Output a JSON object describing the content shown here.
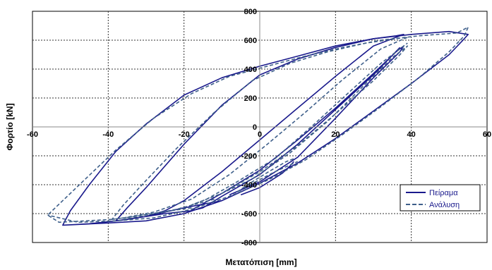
{
  "chart_data": {
    "type": "line",
    "title": "",
    "xlabel": "Μετατόπιση [mm]",
    "ylabel": "Φορτίο [kN]",
    "xlim": [
      -60,
      60
    ],
    "ylim": [
      -800,
      800
    ],
    "xticks": [
      -60,
      -40,
      -20,
      0,
      20,
      40,
      60
    ],
    "yticks": [
      -800,
      -600,
      -400,
      -200,
      0,
      200,
      400,
      600,
      800
    ],
    "x_tick_labels": [
      "-60",
      "-40",
      "-20",
      "0",
      "20",
      "40",
      "60"
    ],
    "y_tick_labels": [
      "-800",
      "-600",
      "-400",
      "-200",
      "0",
      "200",
      "400",
      "600",
      "800"
    ],
    "grid": true,
    "legend_position": "bottom-right",
    "series": [
      {
        "name": "Πείραμα",
        "color": "#1a1a8c",
        "style": "solid",
        "loops": [
          [
            [
              -5,
              -470
            ],
            [
              0,
              -420
            ],
            [
              3,
              -370
            ],
            [
              6,
              -320
            ],
            [
              8,
              -270
            ],
            [
              9,
              -240
            ]
          ],
          [
            [
              -8,
              -470
            ],
            [
              0,
              -380
            ],
            [
              10,
              -210
            ],
            [
              20,
              60
            ],
            [
              30,
              340
            ],
            [
              37,
              520
            ],
            [
              38,
              560
            ],
            [
              36,
              520
            ],
            [
              30,
              370
            ],
            [
              20,
              130
            ],
            [
              10,
              -90
            ],
            [
              0,
              -300
            ],
            [
              -10,
              -460
            ],
            [
              -17,
              -560
            ],
            [
              -18,
              -580
            ],
            [
              -15,
              -560
            ],
            [
              -10,
              -480
            ],
            [
              0,
              -330
            ],
            [
              10,
              -120
            ],
            [
              20,
              120
            ],
            [
              30,
              360
            ],
            [
              37,
              550
            ]
          ],
          [
            [
              -18,
              -580
            ],
            [
              -25,
              -600
            ],
            [
              -35,
              -640
            ],
            [
              -38,
              -650
            ],
            [
              -35,
              -560
            ],
            [
              -30,
              -420
            ],
            [
              -20,
              -120
            ],
            [
              -10,
              150
            ],
            [
              0,
              360
            ],
            [
              10,
              470
            ],
            [
              20,
              550
            ],
            [
              30,
              610
            ],
            [
              36,
              630
            ],
            [
              38,
              640
            ],
            [
              30,
              560
            ],
            [
              20,
              350
            ],
            [
              10,
              130
            ],
            [
              0,
              -90
            ],
            [
              -10,
              -310
            ],
            [
              -20,
              -510
            ],
            [
              -25,
              -580
            ],
            [
              -30,
              -620
            ],
            [
              -38,
              -650
            ]
          ],
          [
            [
              -38,
              -650
            ],
            [
              -45,
              -670
            ],
            [
              -52,
              -680
            ],
            [
              -50,
              -580
            ],
            [
              -45,
              -400
            ],
            [
              -38,
              -170
            ],
            [
              -30,
              20
            ],
            [
              -20,
              220
            ],
            [
              -10,
              340
            ],
            [
              0,
              420
            ],
            [
              10,
              490
            ],
            [
              20,
              560
            ],
            [
              30,
              610
            ],
            [
              40,
              640
            ],
            [
              50,
              660
            ],
            [
              55,
              640
            ],
            [
              54,
              610
            ],
            [
              50,
              500
            ],
            [
              40,
              300
            ],
            [
              30,
              110
            ],
            [
              20,
              -80
            ],
            [
              10,
              -250
            ],
            [
              0,
              -390
            ],
            [
              -10,
              -510
            ],
            [
              -20,
              -600
            ],
            [
              -30,
              -650
            ],
            [
              -40,
              -665
            ],
            [
              -52,
              -680
            ]
          ],
          [
            [
              -10,
              -510
            ],
            [
              -20,
              -560
            ],
            [
              -25,
              -590
            ],
            [
              -30,
              -620
            ]
          ]
        ]
      },
      {
        "name": "Ανάλυση",
        "color": "#3e5f8a",
        "style": "dashed",
        "loops": [
          [
            [
              -6,
              -450
            ],
            [
              -2,
              -380
            ],
            [
              3,
              -300
            ],
            [
              7,
              -240
            ],
            [
              9,
              -220
            ]
          ],
          [
            [
              -10,
              -460
            ],
            [
              -2,
              -360
            ],
            [
              8,
              -180
            ],
            [
              18,
              40
            ],
            [
              28,
              300
            ],
            [
              35,
              480
            ],
            [
              39,
              560
            ],
            [
              37,
              500
            ],
            [
              30,
              320
            ],
            [
              20,
              90
            ],
            [
              10,
              -130
            ],
            [
              0,
              -310
            ],
            [
              -10,
              -460
            ],
            [
              -18,
              -540
            ],
            [
              -14,
              -500
            ],
            [
              -6,
              -380
            ],
            [
              4,
              -220
            ],
            [
              14,
              10
            ],
            [
              24,
              250
            ],
            [
              32,
              440
            ],
            [
              39,
              580
            ]
          ],
          [
            [
              -18,
              -560
            ],
            [
              -26,
              -590
            ],
            [
              -33,
              -620
            ],
            [
              -39,
              -640
            ],
            [
              -36,
              -540
            ],
            [
              -30,
              -370
            ],
            [
              -22,
              -150
            ],
            [
              -12,
              100
            ],
            [
              -2,
              320
            ],
            [
              8,
              440
            ],
            [
              18,
              520
            ],
            [
              28,
              580
            ],
            [
              36,
              610
            ],
            [
              39,
              620
            ],
            [
              32,
              540
            ],
            [
              22,
              330
            ],
            [
              12,
              100
            ],
            [
              2,
              -120
            ],
            [
              -8,
              -330
            ],
            [
              -18,
              -500
            ],
            [
              -28,
              -590
            ],
            [
              -36,
              -630
            ],
            [
              -39,
              -640
            ]
          ],
          [
            [
              -39,
              -640
            ],
            [
              -46,
              -650
            ],
            [
              -53,
              -660
            ],
            [
              -56,
              -610
            ],
            [
              -52,
              -510
            ],
            [
              -46,
              -360
            ],
            [
              -38,
              -160
            ],
            [
              -28,
              60
            ],
            [
              -18,
              230
            ],
            [
              -8,
              350
            ],
            [
              2,
              420
            ],
            [
              12,
              490
            ],
            [
              22,
              550
            ],
            [
              32,
              600
            ],
            [
              42,
              630
            ],
            [
              52,
              650
            ],
            [
              55,
              690
            ],
            [
              54,
              630
            ],
            [
              50,
              520
            ],
            [
              42,
              340
            ],
            [
              32,
              140
            ],
            [
              22,
              -50
            ],
            [
              12,
              -230
            ],
            [
              2,
              -370
            ],
            [
              -8,
              -480
            ],
            [
              -18,
              -570
            ],
            [
              -28,
              -630
            ],
            [
              -38,
              -650
            ],
            [
              -48,
              -660
            ],
            [
              -56,
              -610
            ]
          ],
          [
            [
              -12,
              -500
            ],
            [
              -22,
              -570
            ],
            [
              -30,
              -610
            ],
            [
              -36,
              -640
            ]
          ],
          [
            [
              -4,
              -420
            ],
            [
              4,
              -310
            ],
            [
              10,
              -240
            ]
          ]
        ]
      }
    ]
  }
}
